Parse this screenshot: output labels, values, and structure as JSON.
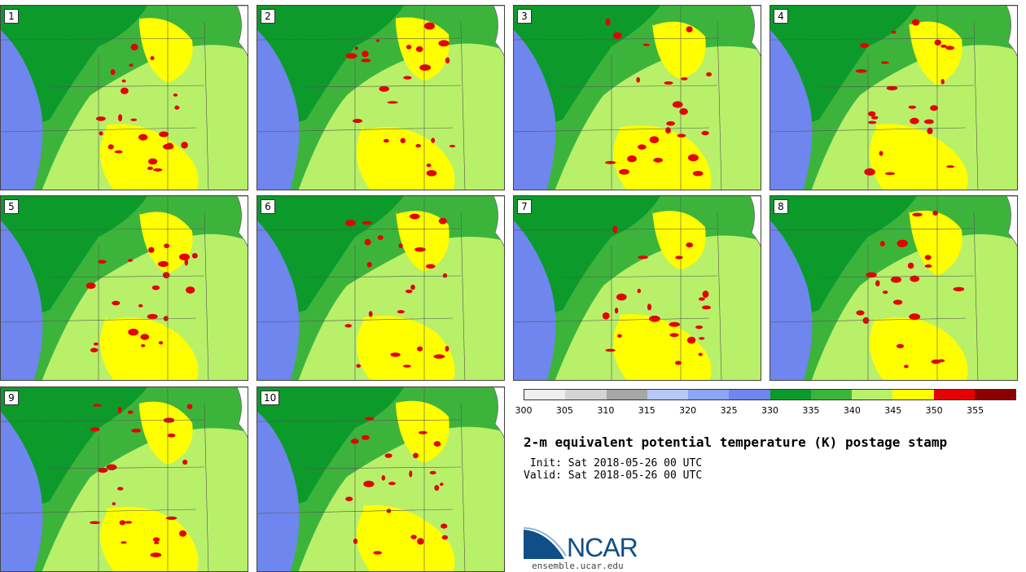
{
  "members": [
    "1",
    "2",
    "3",
    "4",
    "5",
    "6",
    "7",
    "8",
    "9",
    "10"
  ],
  "colorbar": {
    "colors": [
      "#efefef",
      "#d4d4d4",
      "#a6a6a6",
      "#b6c8f8",
      "#8aa6f4",
      "#6e86ee",
      "#0c9a2a",
      "#3cb43c",
      "#b8f06a",
      "#ffff00",
      "#e60000",
      "#8a0000"
    ],
    "ticks": [
      "300",
      "305",
      "310",
      "315",
      "320",
      "325",
      "330",
      "335",
      "340",
      "345",
      "350",
      "355"
    ]
  },
  "title": "2-m equivalent potential temperature (K) postage stamp",
  "init": " Init: Sat 2018-05-26 00 UTC",
  "valid": "Valid: Sat 2018-05-26 00 UTC",
  "logo": {
    "name": "NCAR",
    "url": "ensemble.ucar.edu"
  }
}
